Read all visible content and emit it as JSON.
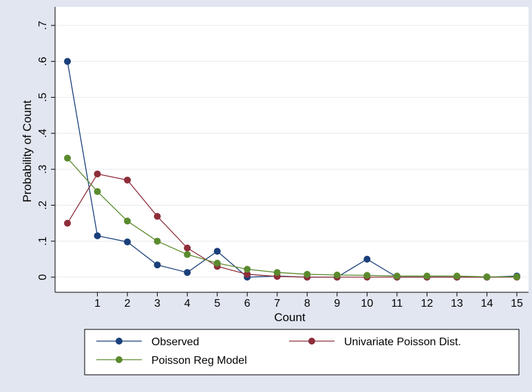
{
  "chart_data": {
    "type": "line",
    "xlabel": "Count",
    "ylabel": "Probability of Count",
    "x": [
      0,
      1,
      2,
      3,
      4,
      5,
      6,
      7,
      8,
      9,
      10,
      11,
      12,
      13,
      14,
      15
    ],
    "xticks": [
      "1",
      "2",
      "3",
      "4",
      "5",
      "6",
      "7",
      "8",
      "9",
      "10",
      "11",
      "12",
      "13",
      "14",
      "15"
    ],
    "yticks": [
      "0",
      ".1",
      ".2",
      ".3",
      ".4",
      ".5",
      ".6",
      ".7"
    ],
    "ylim": [
      0,
      0.7
    ],
    "xlim": [
      0,
      15
    ],
    "grid": true,
    "legend_position": "bottom",
    "series": [
      {
        "name": "Observed",
        "color": "#1a3f7a",
        "values": [
          0.6,
          0.115,
          0.098,
          0.034,
          0.013,
          0.072,
          0.0,
          0.003,
          0.0,
          0.0,
          0.05,
          0.0,
          0.0,
          0.0,
          0.0,
          0.003
        ]
      },
      {
        "name": "Univariate Poisson Dist.",
        "color": "#8e2e3a",
        "values": [
          0.15,
          0.287,
          0.27,
          0.169,
          0.081,
          0.03,
          0.008,
          0.002,
          0.0,
          0.0,
          0.0,
          0.0,
          0.0,
          0.0,
          0.0,
          0.0
        ]
      },
      {
        "name": "Poisson Reg Model",
        "color": "#5b8a2e",
        "values": [
          0.331,
          0.238,
          0.156,
          0.1,
          0.063,
          0.039,
          0.022,
          0.013,
          0.008,
          0.006,
          0.005,
          0.003,
          0.003,
          0.003,
          0.001,
          0.001
        ]
      }
    ]
  }
}
